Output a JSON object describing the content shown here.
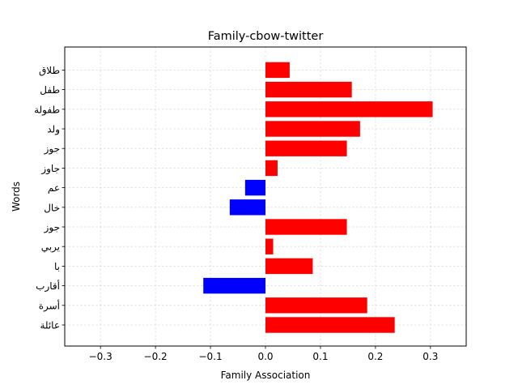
{
  "chart_data": {
    "type": "bar",
    "orientation": "horizontal",
    "title": "Family-cbow-twitter",
    "xlabel": "Family Association",
    "ylabel": "Words",
    "xlim": [
      -0.365,
      0.365
    ],
    "xticks": [
      -0.3,
      -0.2,
      -0.1,
      0.0,
      0.1,
      0.2,
      0.3
    ],
    "xtick_labels": [
      "−0.3",
      "−0.2",
      "−0.1",
      "0.0",
      "0.1",
      "0.2",
      "0.3"
    ],
    "grid": true,
    "categories": [
      "عائلة",
      "أسرة",
      "أقارب",
      "با",
      "يربي",
      "جوز",
      "خال",
      "عم",
      "جاوز",
      "جوز",
      "ولد",
      "طفولة",
      "طفل",
      "طلاق"
    ],
    "values": [
      0.235,
      0.185,
      -0.113,
      0.086,
      0.014,
      0.148,
      -0.065,
      -0.037,
      0.022,
      0.148,
      0.172,
      0.304,
      0.157,
      0.044
    ],
    "colors": {
      "positive": "#ff0000",
      "negative": "#0000ff"
    }
  }
}
